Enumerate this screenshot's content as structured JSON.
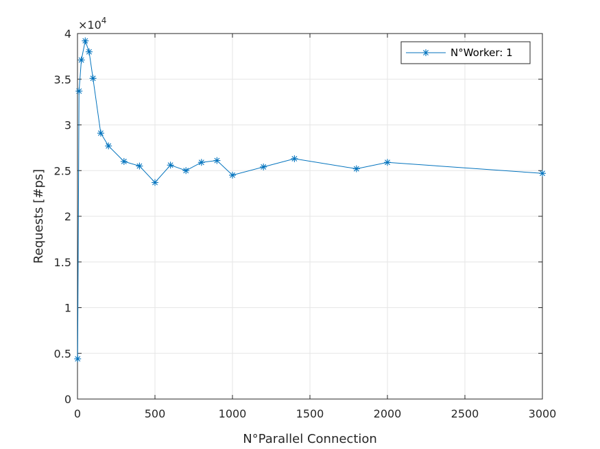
{
  "chart_data": {
    "type": "line",
    "xlabel": "N°Parallel Connection",
    "ylabel": "Requests [#ps]",
    "exponent_label": "×10",
    "exponent_power": "4",
    "xlim": [
      0,
      3000
    ],
    "ylim": [
      0,
      40000
    ],
    "x_ticks": [
      0,
      500,
      1000,
      1500,
      2000,
      2500,
      3000
    ],
    "x_tick_labels": [
      "0",
      "500",
      "1000",
      "1500",
      "2000",
      "2500",
      "3000"
    ],
    "y_ticks": [
      0,
      5000,
      10000,
      15000,
      20000,
      25000,
      30000,
      35000,
      40000
    ],
    "y_tick_labels": [
      "0",
      "0.5",
      "1",
      "1.5",
      "2",
      "2.5",
      "3",
      "3.5",
      "4"
    ],
    "grid": true,
    "legend_position": "top-right",
    "series": [
      {
        "name": "N°Worker: 1",
        "color": "#0072BD",
        "marker": "asterisk",
        "x": [
          1,
          10,
          25,
          50,
          75,
          100,
          150,
          200,
          300,
          400,
          500,
          600,
          700,
          800,
          900,
          1000,
          1200,
          1400,
          1800,
          2000,
          3000
        ],
        "y": [
          4400,
          33700,
          37100,
          39200,
          38000,
          35100,
          29100,
          27700,
          26000,
          25500,
          23700,
          25600,
          25000,
          25900,
          26100,
          24500,
          25400,
          26300,
          25200,
          25900,
          24700
        ]
      }
    ]
  }
}
